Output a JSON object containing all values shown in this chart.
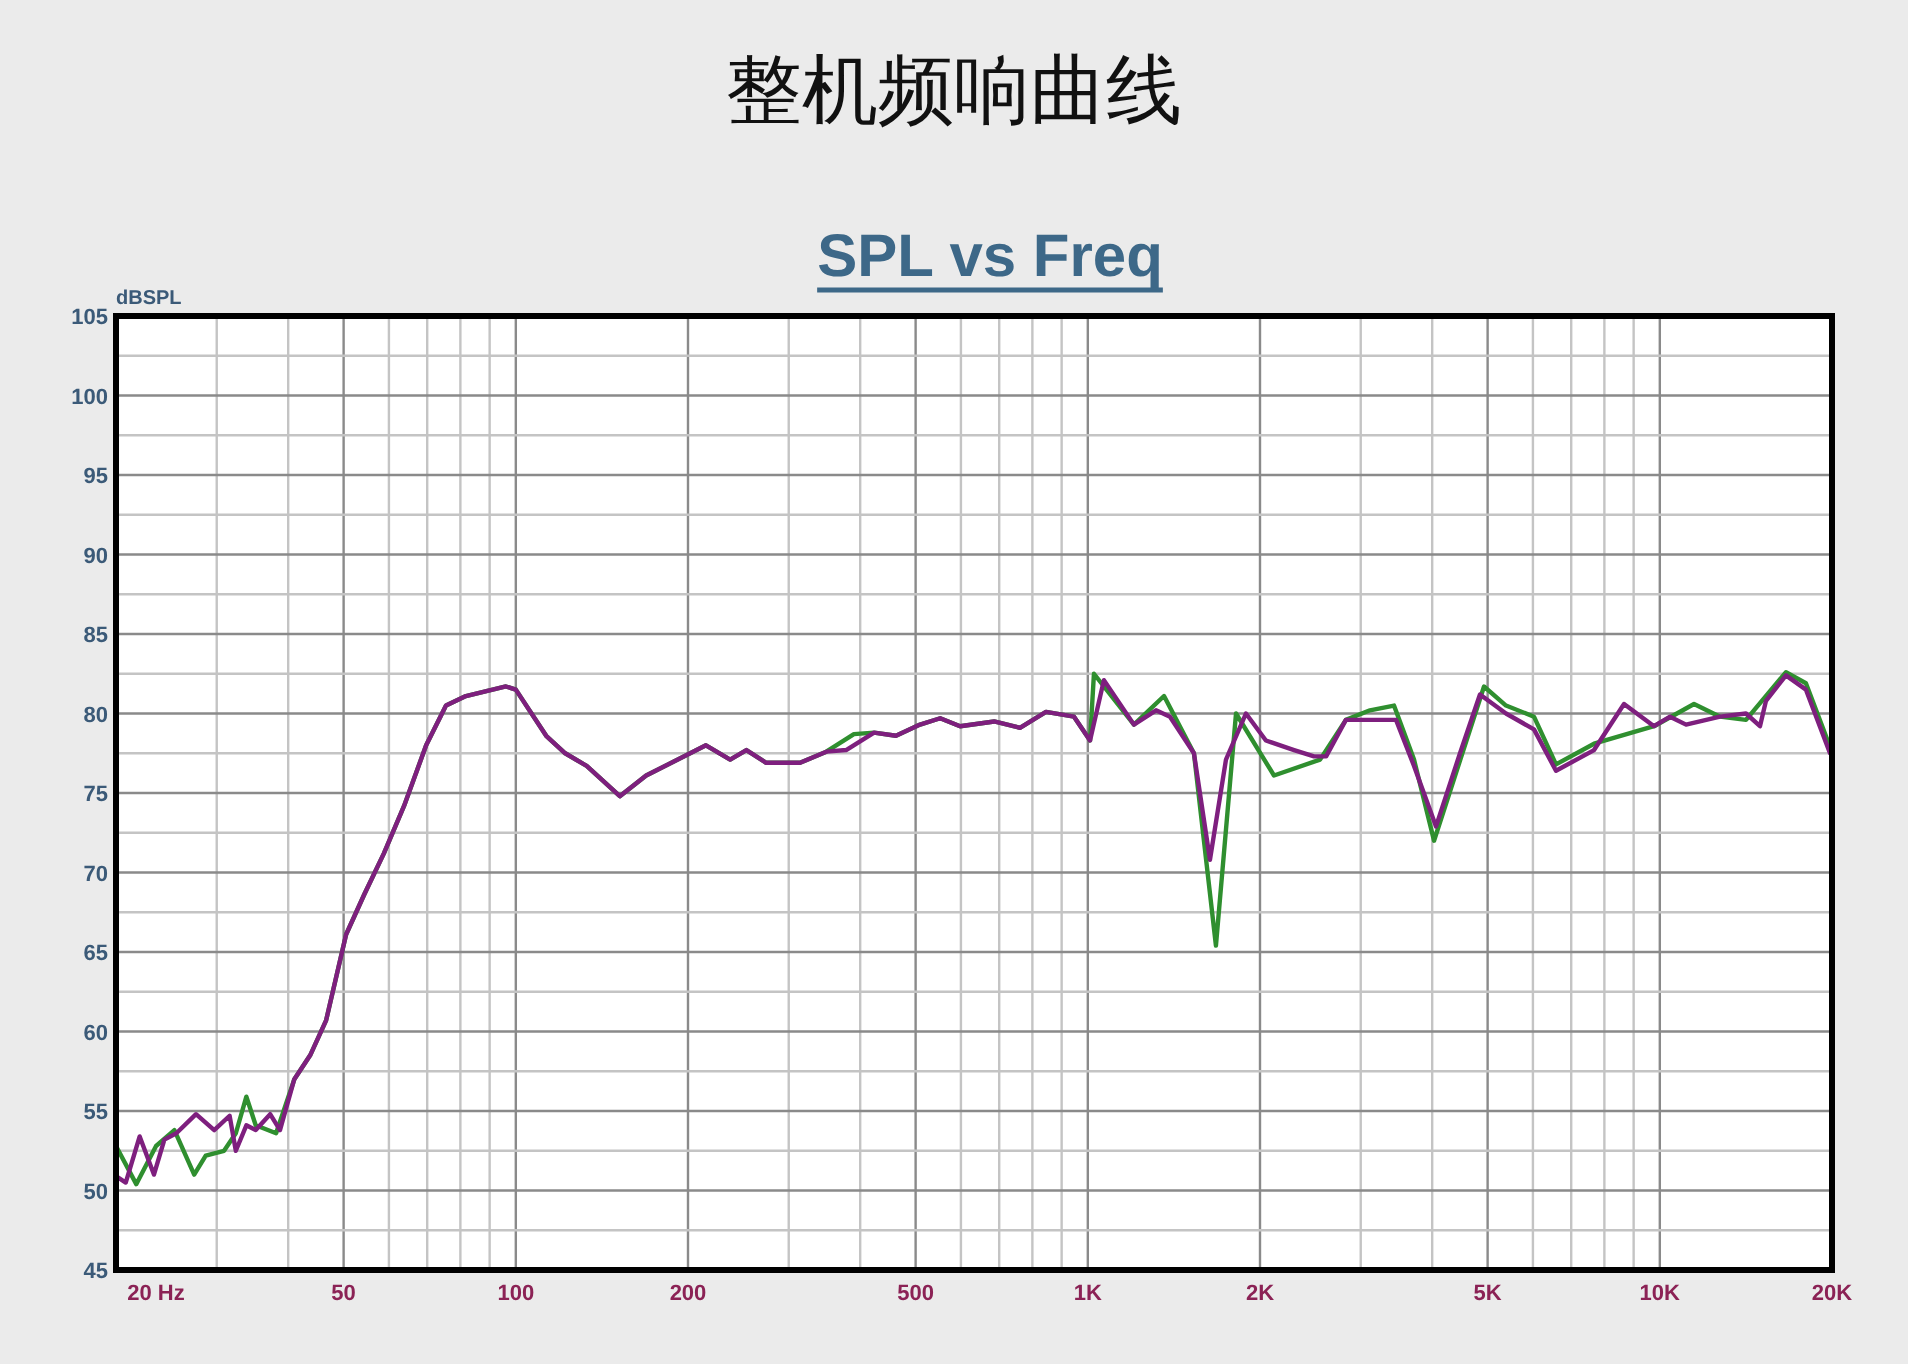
{
  "chart_data": {
    "type": "line",
    "title": "整机频响曲线",
    "subtitle": "SPL vs Freq",
    "ylabel": "dBSPL",
    "log": "x",
    "grid": true,
    "xlim": [
      20,
      20000
    ],
    "ylim": [
      45,
      105
    ],
    "xticks": [
      {
        "value": 20,
        "label": "20  Hz"
      },
      {
        "value": 30,
        "label": null
      },
      {
        "value": 40,
        "label": null
      },
      50,
      {
        "value": 60,
        "label": null
      },
      {
        "value": 70,
        "label": null
      },
      {
        "value": 80,
        "label": null
      },
      {
        "value": 90,
        "label": null
      },
      100,
      200,
      {
        "value": 300,
        "label": null
      },
      {
        "value": 400,
        "label": null
      },
      500,
      {
        "value": 600,
        "label": null
      },
      {
        "value": 700,
        "label": null
      },
      {
        "value": 800,
        "label": null
      },
      {
        "value": 900,
        "label": null
      },
      {
        "value": 1000,
        "label": "1K"
      },
      {
        "value": 2000,
        "label": "2K"
      },
      {
        "value": 3000,
        "label": null
      },
      {
        "value": 4000,
        "label": null
      },
      {
        "value": 5000,
        "label": "5K"
      },
      {
        "value": 6000,
        "label": null
      },
      {
        "value": 7000,
        "label": null
      },
      {
        "value": 8000,
        "label": null
      },
      {
        "value": 9000,
        "label": null
      },
      {
        "value": 10000,
        "label": "10K"
      },
      {
        "value": 20000,
        "label": "20K"
      }
    ],
    "yticks": [
      45,
      {
        "value": 47.5,
        "label": null
      },
      50,
      {
        "value": 52.5,
        "label": null
      },
      55,
      {
        "value": 57.5,
        "label": null
      },
      60,
      {
        "value": 62.5,
        "label": null
      },
      65,
      {
        "value": 67.5,
        "label": null
      },
      70,
      {
        "value": 72.5,
        "label": null
      },
      75,
      {
        "value": 77.5,
        "label": null
      },
      80,
      {
        "value": 82.5,
        "label": null
      },
      85,
      {
        "value": 87.5,
        "label": null
      },
      90,
      {
        "value": 92.5,
        "label": null
      },
      95,
      {
        "value": 97.5,
        "label": null
      },
      100,
      {
        "value": 102.5,
        "label": null
      },
      105
    ],
    "series": [
      {
        "color": "#2f8f2f",
        "x": [
          20,
          21.7,
          23.5,
          25.3,
          27.4,
          28.7,
          30.9,
          32.4,
          33.8,
          35.1,
          38.1,
          41.0,
          43.7,
          46.6,
          50.5,
          54.3,
          58.8,
          63.8,
          69.7,
          75.5,
          81.8,
          96.1,
          100,
          113,
          122,
          133,
          152,
          169,
          215,
          237,
          253,
          274,
          314,
          349,
          390,
          423,
          462,
          509,
          552,
          598,
          686,
          761,
          845,
          946,
          1009,
          1025,
          1204,
          1359,
          1533,
          1675,
          1816,
          2116,
          2547,
          2826,
          3114,
          3430,
          3718,
          4030,
          4928,
          5384,
          6026,
          6584,
          7674,
          9770,
          11476,
          12744,
          14148,
          16616,
          18008,
          19840
        ],
        "values": [
          52.8,
          50.4,
          52.8,
          53.8,
          51.0,
          52.2,
          52.5,
          53.6,
          55.9,
          54.1,
          53.6,
          57.0,
          58.5,
          60.7,
          66.1,
          68.6,
          71.2,
          74.2,
          78.0,
          80.5,
          81.1,
          81.7,
          81.5,
          78.6,
          77.5,
          76.7,
          74.8,
          76.1,
          78.0,
          77.1,
          77.7,
          76.9,
          76.9,
          77.6,
          78.7,
          78.8,
          78.6,
          79.3,
          79.7,
          79.2,
          79.5,
          79.1,
          80.1,
          79.8,
          78.3,
          82.5,
          79.3,
          81.1,
          77.5,
          65.4,
          80.0,
          76.1,
          77.1,
          79.6,
          80.2,
          80.5,
          77.1,
          72.0,
          81.7,
          80.5,
          79.8,
          76.8,
          78.1,
          79.2,
          80.6,
          79.8,
          79.6,
          82.6,
          81.9,
          77.9
        ]
      },
      {
        "color": "#7e1f7e",
        "x": [
          20,
          20.8,
          22.0,
          23.3,
          24.3,
          25.5,
          27.6,
          29.7,
          31.6,
          32.4,
          33.8,
          35.1,
          37.2,
          38.7,
          41.0,
          43.7,
          46.6,
          50.5,
          54.3,
          58.8,
          63.8,
          69.7,
          75.5,
          81.8,
          96.1,
          100,
          113,
          122,
          133,
          152,
          169,
          215,
          237,
          253,
          274,
          314,
          349,
          378,
          423,
          462,
          509,
          552,
          598,
          686,
          761,
          845,
          946,
          1009,
          1067,
          1204,
          1316,
          1392,
          1533,
          1635,
          1744,
          1890,
          2048,
          2294,
          2486,
          2610,
          2826,
          3164,
          3458,
          3718,
          4062,
          4474,
          4848,
          5384,
          6026,
          6584,
          7674,
          8658,
          9770,
          10420,
          11114,
          12744,
          14148,
          14966,
          15332,
          16616,
          18008,
          19840
        ],
        "values": [
          50.9,
          50.5,
          53.4,
          51.0,
          53.2,
          53.6,
          54.8,
          53.8,
          54.7,
          52.5,
          54.1,
          53.8,
          54.8,
          53.8,
          57.0,
          58.5,
          60.7,
          66.1,
          68.6,
          71.2,
          74.2,
          78.0,
          80.5,
          81.1,
          81.7,
          81.5,
          78.6,
          77.5,
          76.7,
          74.8,
          76.1,
          78.0,
          77.1,
          77.7,
          76.9,
          76.9,
          77.6,
          77.7,
          78.8,
          78.6,
          79.3,
          79.7,
          79.2,
          79.5,
          79.1,
          80.1,
          79.8,
          78.3,
          82.1,
          79.3,
          80.2,
          79.8,
          77.5,
          70.8,
          77.1,
          80.0,
          78.3,
          77.7,
          77.3,
          77.3,
          79.6,
          79.6,
          79.6,
          76.7,
          72.9,
          77.5,
          81.2,
          80.0,
          79.0,
          76.4,
          77.7,
          80.6,
          79.2,
          79.8,
          79.3,
          79.8,
          80.0,
          79.2,
          80.8,
          82.4,
          81.5,
          77.5
        ]
      }
    ]
  }
}
